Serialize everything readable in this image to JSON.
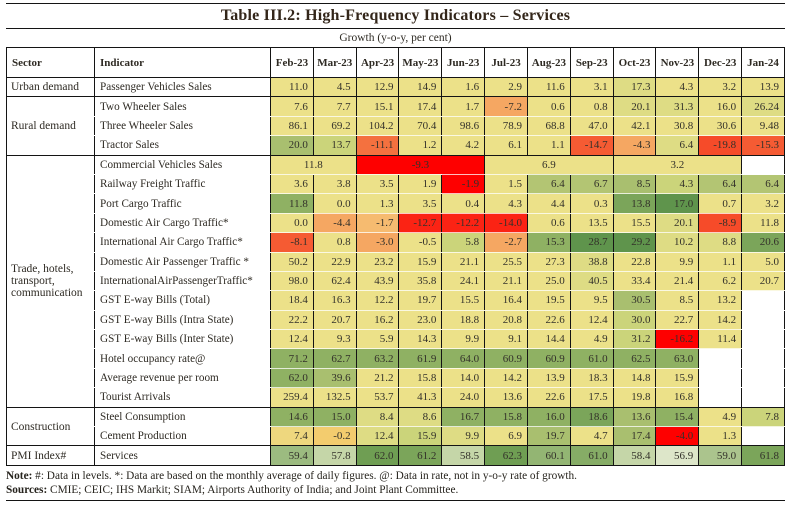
{
  "title": "Table III.2: High-Frequency Indicators – Services",
  "subtitle": "Growth (y-o-y, per cent)",
  "columns": [
    "Sector",
    "Indicator",
    "Feb-23",
    "Mar-23",
    "Apr-23",
    "May-23",
    "Jun-23",
    "Jul-23",
    "Aug-23",
    "Sep-23",
    "Oct-23",
    "Nov-23",
    "Dec-23",
    "Jan-24"
  ],
  "palette": {
    "y": "#ece189",
    "y2": "#dedc84",
    "ov": "#cbd47a",
    "og": "#a9bf6f",
    "og2": "#b3c573",
    "g": "#8fb163",
    "g2": "#7ba55a",
    "g3": "#86ac66",
    "dg": "#5f944c",
    "dg2": "#6f9e53",
    "mg": "#9cbb80",
    "mg2": "#abc48d",
    "mg3": "#93b573",
    "lg": "#c5d6a8",
    "vlg": "#dde6c9",
    "lo": "#f6bb70",
    "o": "#f5a762",
    "do": "#f4713f",
    "ro": "#f55b33",
    "ro2": "#f64b29",
    "r": "#fb2314",
    "rr": "#fe0000",
    "wy": "#eed77e",
    "oy": "#f3cc6e"
  },
  "groups": [
    {
      "sector": "Urban demand",
      "rows": [
        {
          "indicator": "Passenger Vehicles Sales",
          "cells": [
            [
              "11.0",
              "y"
            ],
            [
              "4.5",
              "y"
            ],
            [
              "12.9",
              "y"
            ],
            [
              "14.9",
              "y"
            ],
            [
              "1.6",
              "y"
            ],
            [
              "2.9",
              "y"
            ],
            [
              "11.6",
              "y"
            ],
            [
              "3.1",
              "y"
            ],
            [
              "17.3",
              "y2"
            ],
            [
              "4.3",
              "y"
            ],
            [
              "3.2",
              "y"
            ],
            [
              "13.9",
              "y"
            ]
          ]
        }
      ]
    },
    {
      "sector": "Rural demand",
      "rows": [
        {
          "indicator": "Two Wheeler Sales",
          "cells": [
            [
              "7.6",
              "y"
            ],
            [
              "7.7",
              "y"
            ],
            [
              "15.1",
              "y"
            ],
            [
              "17.4",
              "y"
            ],
            [
              "1.7",
              "y"
            ],
            [
              "-7.2",
              "o"
            ],
            [
              "0.6",
              "y"
            ],
            [
              "0.8",
              "y"
            ],
            [
              "20.1",
              "y2"
            ],
            [
              "31.3",
              "y2"
            ],
            [
              "16.0",
              "y"
            ],
            [
              "26.24",
              "y2"
            ]
          ]
        },
        {
          "indicator": "Three Wheeler Sales",
          "cells": [
            [
              "86.1",
              "y"
            ],
            [
              "69.2",
              "y"
            ],
            [
              "104.2",
              "y"
            ],
            [
              "70.4",
              "y"
            ],
            [
              "98.6",
              "y"
            ],
            [
              "78.9",
              "y"
            ],
            [
              "68.8",
              "y"
            ],
            [
              "47.0",
              "y"
            ],
            [
              "42.1",
              "y"
            ],
            [
              "30.8",
              "y"
            ],
            [
              "30.6",
              "y"
            ],
            [
              "9.48",
              "y"
            ]
          ]
        },
        {
          "indicator": "Tractor Sales",
          "cells": [
            [
              "20.0",
              "og"
            ],
            [
              "13.7",
              "ov"
            ],
            [
              "-11.1",
              "do"
            ],
            [
              "1.2",
              "y"
            ],
            [
              "4.2",
              "y"
            ],
            [
              "6.1",
              "y"
            ],
            [
              "1.1",
              "y"
            ],
            [
              "-14.7",
              "ro"
            ],
            [
              "-4.3",
              "o"
            ],
            [
              "6.4",
              "y2"
            ],
            [
              "-19.8",
              "ro2"
            ],
            [
              "-15.3",
              "ro"
            ]
          ]
        }
      ]
    },
    {
      "sector": "Trade, hotels, transport, communication",
      "rows": [
        {
          "indicator": "Commercial Vehicles Sales",
          "cells": [
            [
              "11.8",
              "y",
              2
            ],
            [
              "-9.3",
              "rr",
              3
            ],
            [
              "6.9",
              "y",
              3
            ],
            [
              "3.2",
              "y",
              3
            ],
            [
              "",
              "",
              1
            ]
          ]
        },
        {
          "indicator": "Railway Freight Traffic",
          "cells": [
            [
              "3.6",
              "y"
            ],
            [
              "3.8",
              "y"
            ],
            [
              "3.5",
              "y"
            ],
            [
              "1.9",
              "y"
            ],
            [
              "-1.9",
              "rr"
            ],
            [
              "1.5",
              "y"
            ],
            [
              "6.4",
              "og2"
            ],
            [
              "6.7",
              "og2"
            ],
            [
              "8.5",
              "og"
            ],
            [
              "4.3",
              "ov"
            ],
            [
              "6.4",
              "og2"
            ],
            [
              "6.4",
              "og2"
            ]
          ]
        },
        {
          "indicator": "Port Cargo Traffic",
          "cells": [
            [
              "11.8",
              "g"
            ],
            [
              "0.0",
              "y"
            ],
            [
              "1.3",
              "y"
            ],
            [
              "3.5",
              "y"
            ],
            [
              "0.4",
              "y"
            ],
            [
              "4.3",
              "y"
            ],
            [
              "4.4",
              "y"
            ],
            [
              "0.3",
              "y"
            ],
            [
              "13.8",
              "g2"
            ],
            [
              "17.0",
              "dg"
            ],
            [
              "0.7",
              "y"
            ],
            [
              "3.2",
              "y"
            ]
          ]
        },
        {
          "indicator": "Domestic Air Cargo Traffic*",
          "cells": [
            [
              "0.0",
              "y"
            ],
            [
              "-4.4",
              "o"
            ],
            [
              "-1.7",
              "lo"
            ],
            [
              "-12.7",
              "r"
            ],
            [
              "-12.2",
              "r"
            ],
            [
              "-14.0",
              "r"
            ],
            [
              "0.6",
              "y"
            ],
            [
              "13.5",
              "y"
            ],
            [
              "15.5",
              "y"
            ],
            [
              "20.1",
              "y2"
            ],
            [
              "-8.9",
              "ro2"
            ],
            [
              "11.8",
              "y"
            ]
          ]
        },
        {
          "indicator": "International Air Cargo Traffic*",
          "cells": [
            [
              "-8.1",
              "ro"
            ],
            [
              "0.8",
              "y"
            ],
            [
              "-3.0",
              "o"
            ],
            [
              "-0.5",
              "y"
            ],
            [
              "5.8",
              "ov"
            ],
            [
              "-2.7",
              "o"
            ],
            [
              "15.3",
              "g"
            ],
            [
              "28.7",
              "dg"
            ],
            [
              "29.2",
              "dg"
            ],
            [
              "10.2",
              "y2"
            ],
            [
              "8.8",
              "y2"
            ],
            [
              "20.6",
              "g2"
            ]
          ]
        },
        {
          "indicator": "Domestic Air Passenger Traffic *",
          "cells": [
            [
              "50.2",
              "y"
            ],
            [
              "22.9",
              "y"
            ],
            [
              "23.2",
              "y"
            ],
            [
              "15.9",
              "y"
            ],
            [
              "21.1",
              "y"
            ],
            [
              "25.5",
              "y"
            ],
            [
              "27.3",
              "y"
            ],
            [
              "38.8",
              "y2"
            ],
            [
              "22.8",
              "y"
            ],
            [
              "9.9",
              "y"
            ],
            [
              "1.1",
              "y"
            ],
            [
              "5.0",
              "y"
            ]
          ]
        },
        {
          "indicator": "InternationalAirPassengerTraffic*",
          "cells": [
            [
              "98.0",
              "y"
            ],
            [
              "62.4",
              "y"
            ],
            [
              "43.9",
              "y"
            ],
            [
              "35.8",
              "y"
            ],
            [
              "24.1",
              "y"
            ],
            [
              "21.1",
              "y"
            ],
            [
              "25.0",
              "y"
            ],
            [
              "40.5",
              "y2"
            ],
            [
              "33.4",
              "y"
            ],
            [
              "21.4",
              "y"
            ],
            [
              "6.2",
              "y"
            ],
            [
              "20.7",
              "y"
            ]
          ]
        },
        {
          "indicator": "GST E-way Bills (Total)",
          "cells": [
            [
              "18.4",
              "y"
            ],
            [
              "16.3",
              "y"
            ],
            [
              "12.2",
              "y"
            ],
            [
              "19.7",
              "y"
            ],
            [
              "15.5",
              "y"
            ],
            [
              "16.4",
              "y"
            ],
            [
              "19.5",
              "y"
            ],
            [
              "9.5",
              "y"
            ],
            [
              "30.5",
              "og"
            ],
            [
              "8.5",
              "y"
            ],
            [
              "13.2",
              "y"
            ],
            [
              "",
              ""
            ]
          ]
        },
        {
          "indicator": "GST E-way Bills (Intra State)",
          "cells": [
            [
              "22.2",
              "y"
            ],
            [
              "20.7",
              "y"
            ],
            [
              "16.2",
              "y"
            ],
            [
              "23.0",
              "y"
            ],
            [
              "18.8",
              "y"
            ],
            [
              "20.8",
              "y"
            ],
            [
              "22.6",
              "y"
            ],
            [
              "12.4",
              "y"
            ],
            [
              "30.0",
              "ov"
            ],
            [
              "22.7",
              "y"
            ],
            [
              "14.2",
              "y"
            ],
            [
              "",
              ""
            ]
          ]
        },
        {
          "indicator": "GST E-way Bills (Inter State)",
          "cells": [
            [
              "12.4",
              "y"
            ],
            [
              "9.3",
              "y"
            ],
            [
              "5.9",
              "y"
            ],
            [
              "14.3",
              "y"
            ],
            [
              "9.9",
              "y"
            ],
            [
              "9.1",
              "y"
            ],
            [
              "14.4",
              "y"
            ],
            [
              "4.9",
              "y"
            ],
            [
              "31.2",
              "ov"
            ],
            [
              "-16.2",
              "rr"
            ],
            [
              "11.4",
              "y"
            ],
            [
              "",
              ""
            ]
          ]
        },
        {
          "indicator": "Hotel occupancy rate@",
          "cells": [
            [
              "71.2",
              "g"
            ],
            [
              "62.7",
              "g"
            ],
            [
              "63.2",
              "g"
            ],
            [
              "61.9",
              "g"
            ],
            [
              "64.0",
              "g"
            ],
            [
              "60.9",
              "g"
            ],
            [
              "60.9",
              "g"
            ],
            [
              "61.0",
              "g"
            ],
            [
              "62.5",
              "g"
            ],
            [
              "63.0",
              "g"
            ],
            [
              "",
              ""
            ],
            [
              "",
              ""
            ]
          ]
        },
        {
          "indicator": "Average revenue per room",
          "cells": [
            [
              "62.0",
              "g"
            ],
            [
              "39.6",
              "og"
            ],
            [
              "21.2",
              "y"
            ],
            [
              "15.8",
              "y"
            ],
            [
              "14.0",
              "y"
            ],
            [
              "14.2",
              "y"
            ],
            [
              "13.9",
              "y"
            ],
            [
              "18.3",
              "y"
            ],
            [
              "14.8",
              "y"
            ],
            [
              "15.9",
              "y"
            ],
            [
              "",
              ""
            ],
            [
              "",
              ""
            ]
          ]
        },
        {
          "indicator": "Tourist Arrivals",
          "cells": [
            [
              "259.4",
              "y"
            ],
            [
              "132.5",
              "y"
            ],
            [
              "53.7",
              "y"
            ],
            [
              "41.3",
              "y"
            ],
            [
              "24.0",
              "y"
            ],
            [
              "13.6",
              "y"
            ],
            [
              "22.6",
              "y"
            ],
            [
              "17.5",
              "y"
            ],
            [
              "19.8",
              "y"
            ],
            [
              "16.8",
              "y"
            ],
            [
              "",
              ""
            ],
            [
              "",
              ""
            ]
          ]
        }
      ]
    },
    {
      "sector": "Construction",
      "rows": [
        {
          "indicator": "Steel Consumption",
          "cells": [
            [
              "14.6",
              "g"
            ],
            [
              "15.0",
              "g"
            ],
            [
              "8.4",
              "y2"
            ],
            [
              "8.6",
              "y2"
            ],
            [
              "16.7",
              "g"
            ],
            [
              "15.8",
              "g"
            ],
            [
              "16.0",
              "g"
            ],
            [
              "18.6",
              "g2"
            ],
            [
              "13.6",
              "og"
            ],
            [
              "15.4",
              "g"
            ],
            [
              "4.9",
              "y"
            ],
            [
              "7.8",
              "ov"
            ]
          ]
        },
        {
          "indicator": "Cement Production",
          "cells": [
            [
              "7.4",
              "wy"
            ],
            [
              "-0.2",
              "oy"
            ],
            [
              "12.4",
              "y2"
            ],
            [
              "15.9",
              "ov"
            ],
            [
              "9.9",
              "y2"
            ],
            [
              "6.9",
              "y"
            ],
            [
              "19.7",
              "og"
            ],
            [
              "4.7",
              "y"
            ],
            [
              "17.4",
              "og"
            ],
            [
              "-4.0",
              "rr"
            ],
            [
              "1.3",
              "y"
            ],
            [
              "",
              ""
            ]
          ]
        }
      ]
    },
    {
      "sector": "PMI Index#",
      "rows": [
        {
          "indicator": "Services",
          "cells": [
            [
              "59.4",
              "mg"
            ],
            [
              "57.8",
              "lg"
            ],
            [
              "62.0",
              "dg2"
            ],
            [
              "61.2",
              "g2"
            ],
            [
              "58.5",
              "lg"
            ],
            [
              "62.3",
              "dg2"
            ],
            [
              "60.1",
              "mg3"
            ],
            [
              "61.0",
              "g3"
            ],
            [
              "58.4",
              "lg"
            ],
            [
              "56.9",
              "vlg"
            ],
            [
              "59.0",
              "mg2"
            ],
            [
              "61.8",
              "g2"
            ]
          ]
        }
      ]
    }
  ],
  "note_label": "Note:",
  "note_text": " #: Data in levels. *: Data are based on the monthly average of daily figures. @: Data in rate, not in y-o-y rate of growth.",
  "sources_label": "Sources:",
  "sources_text": " CMIE; CEIC; IHS Markit; SIAM; Airports Authority of India; and Joint Plant Committee."
}
